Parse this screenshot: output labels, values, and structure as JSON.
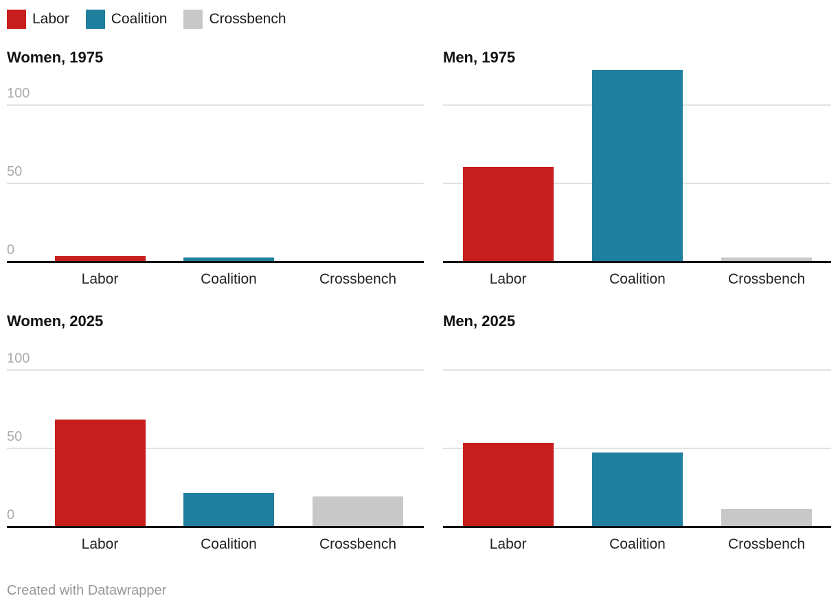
{
  "page": {
    "background": "#ffffff"
  },
  "legend": {
    "items": [
      {
        "label": "Labor",
        "color": "#c71e1d"
      },
      {
        "label": "Coalition",
        "color": "#1e7f9e"
      },
      {
        "label": "Crossbench",
        "color": "#c8c8c8"
      }
    ]
  },
  "footer": {
    "text": "Created with Datawrapper"
  },
  "chart_data": {
    "type": "bar",
    "layout": "small-multiples-2x2",
    "categories": [
      "Labor",
      "Coalition",
      "Crossbench"
    ],
    "series_colors": {
      "Labor": "#c71e1d",
      "Coalition": "#1e7f9e",
      "Crossbench": "#c8c8c8"
    },
    "y_ticks": [
      0,
      50,
      100
    ],
    "y_tick_labels": [
      "0",
      "50",
      "100"
    ],
    "ylim": [
      0,
      125
    ],
    "grid": true,
    "legend_position": "top-left",
    "panels": [
      {
        "title": "Women, 1975",
        "values": [
          3,
          2,
          0
        ],
        "show_y_labels": true
      },
      {
        "title": "Men, 1975",
        "values": [
          60,
          122,
          2
        ],
        "show_y_labels": false
      },
      {
        "title": "Women, 2025",
        "values": [
          68,
          21,
          19
        ],
        "show_y_labels": true
      },
      {
        "title": "Men, 2025",
        "values": [
          53,
          47,
          11
        ],
        "show_y_labels": false
      }
    ],
    "attribution": "Created with Datawrapper"
  }
}
